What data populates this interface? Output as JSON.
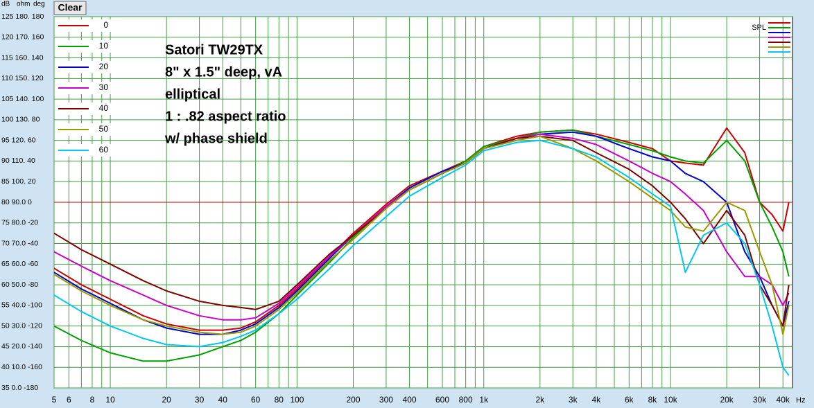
{
  "chart_data": {
    "type": "line",
    "axis_header": [
      "dB",
      "ohm",
      "deg"
    ],
    "button": "Clear",
    "x_unit": "Hz",
    "legend2_title": "SPL",
    "annotations": [
      "Satori TW29TX",
      "8\" x 1.5\" deep, vA",
      "elliptical",
      "1 : .82 aspect ratio",
      "w/ phase shield"
    ],
    "log_x": true,
    "grid": true,
    "reference_line": 80,
    "reference_color": "#c00000",
    "xlim": [
      5,
      45000
    ],
    "ylim": [
      35,
      125
    ],
    "xticks": [
      5,
      6,
      8,
      10,
      20,
      30,
      40,
      60,
      80,
      100,
      200,
      300,
      400,
      600,
      800,
      {
        "value": 1000,
        "label": "1k"
      },
      {
        "value": 2000,
        "label": "2k"
      },
      {
        "value": 3000,
        "label": "3k"
      },
      {
        "value": 4000,
        "label": "4k"
      },
      {
        "value": 6000,
        "label": "6k"
      },
      {
        "value": 8000,
        "label": "8k"
      },
      {
        "value": 10000,
        "label": "10k"
      },
      {
        "value": 20000,
        "label": "20k"
      },
      {
        "value": 30000,
        "label": "30k"
      },
      {
        "value": 40000,
        "label": "40k"
      }
    ],
    "xminor": [
      7,
      9,
      50,
      70,
      90,
      500,
      700,
      900,
      5000,
      7000,
      9000
    ],
    "yticks": [
      {
        "value": 125,
        "label": "125 180. 180"
      },
      {
        "value": 120,
        "label": "120 170. 160"
      },
      {
        "value": 115,
        "label": "115 160. 140"
      },
      {
        "value": 110,
        "label": "110 150. 120"
      },
      {
        "value": 105,
        "label": "105 140. 100"
      },
      {
        "value": 100,
        "label": "100 130. 80"
      },
      {
        "value": 95,
        "label": "95 120. 60"
      },
      {
        "value": 90,
        "label": "90 110. 40"
      },
      {
        "value": 85,
        "label": "85 100. 20"
      },
      {
        "value": 80,
        "label": "80 90.0 0"
      },
      {
        "value": 75,
        "label": "75 80.0 -20"
      },
      {
        "value": 70,
        "label": "70 70.0 -40"
      },
      {
        "value": 65,
        "label": "65 60.0 -60"
      },
      {
        "value": 60,
        "label": "60 50.0 -80"
      },
      {
        "value": 55,
        "label": "55 40.0 -100"
      },
      {
        "value": 50,
        "label": "50 30.0 -120"
      },
      {
        "value": 45,
        "label": "45 20.0 -140"
      },
      {
        "value": 40,
        "label": "40 10.0 -160"
      },
      {
        "value": 35,
        "label": "35 0.0 -180"
      }
    ],
    "x": [
      5,
      7,
      10,
      15,
      20,
      30,
      40,
      50,
      60,
      80,
      100,
      150,
      200,
      300,
      400,
      600,
      800,
      1000,
      1500,
      2000,
      3000,
      4000,
      6000,
      8000,
      10000,
      12000,
      15000,
      20000,
      25000,
      30000,
      35000,
      40000,
      43000
    ],
    "series": [
      {
        "name": "0",
        "color": "#cc0000",
        "values": [
          64,
          60,
          56.5,
          52.5,
          50.5,
          49,
          49,
          49.5,
          51,
          55,
          59,
          67,
          72.5,
          79.5,
          84,
          87.5,
          90,
          93.5,
          96,
          97,
          97.5,
          96.5,
          94.5,
          93,
          90,
          89.5,
          89,
          98,
          92,
          80,
          77,
          73,
          80
        ]
      },
      {
        "name": "10",
        "color": "#00a000",
        "values": [
          50,
          46.5,
          43.5,
          41.5,
          41.5,
          43,
          45,
          46.5,
          48.5,
          53,
          57.5,
          65.5,
          71.5,
          79,
          83,
          87,
          90,
          93.5,
          95.5,
          97,
          97.5,
          96,
          94,
          92.5,
          91,
          90,
          89.5,
          95,
          90,
          80,
          74,
          68,
          62
        ]
      },
      {
        "name": "20",
        "color": "#0000cc",
        "values": [
          63,
          59,
          55.5,
          51.5,
          49.5,
          48,
          48,
          49,
          50.5,
          54.5,
          58.5,
          66.5,
          72,
          79,
          83.5,
          87.5,
          89.5,
          93,
          95.5,
          96.5,
          97,
          96,
          93,
          91,
          90,
          87,
          85,
          80,
          68,
          62,
          55,
          50,
          56
        ]
      },
      {
        "name": "30",
        "color": "#cc00cc",
        "values": [
          68,
          64.5,
          61,
          57.5,
          55,
          52.5,
          51.5,
          51.5,
          52,
          55.5,
          59.5,
          67,
          72,
          79,
          83,
          87,
          89.5,
          93,
          95.5,
          96.5,
          95.5,
          94,
          90,
          87,
          85,
          82,
          78,
          68,
          62,
          62,
          60,
          55,
          58
        ]
      },
      {
        "name": "40",
        "color": "#800000",
        "values": [
          72.5,
          68.5,
          65,
          61,
          58.5,
          56,
          55,
          54.5,
          54,
          56,
          60,
          67.5,
          72,
          78.5,
          83,
          87,
          89.5,
          93,
          95.5,
          96,
          95,
          92,
          88,
          84,
          80,
          76,
          70,
          78,
          72,
          60,
          55,
          50,
          60
        ]
      },
      {
        "name": "50",
        "color": "#999900",
        "values": [
          62.5,
          58.5,
          55,
          51.5,
          50,
          48.5,
          48,
          48.5,
          50,
          54,
          58,
          66,
          71,
          78.5,
          83,
          87,
          89.5,
          93,
          95,
          96,
          93,
          90,
          85,
          81,
          78,
          74,
          73,
          80,
          78,
          68,
          60,
          48,
          55
        ]
      },
      {
        "name": "60",
        "color": "#00c8ee",
        "values": [
          57.5,
          53.5,
          50,
          47,
          45.5,
          45,
          46,
          47.5,
          49,
          53,
          56.5,
          64,
          69.5,
          76.5,
          81.5,
          86,
          89,
          92.5,
          94.5,
          95,
          93,
          91,
          86,
          82,
          79,
          63,
          72,
          75,
          70,
          60,
          50,
          40,
          38
        ]
      }
    ]
  }
}
